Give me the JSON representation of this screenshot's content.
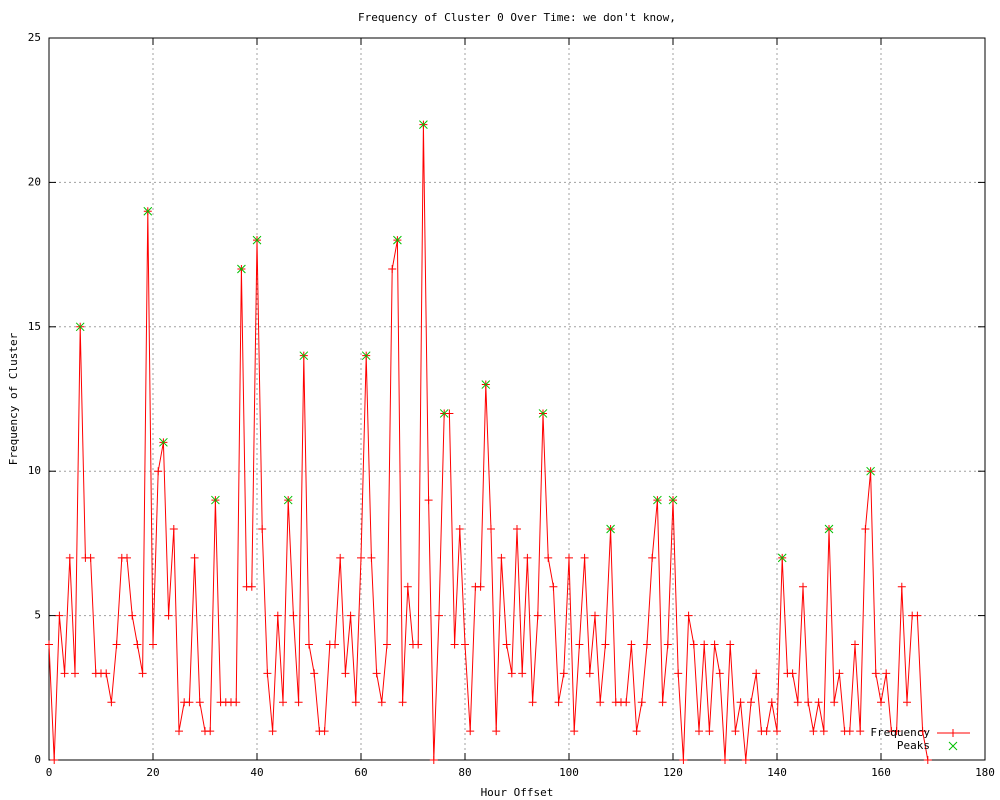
{
  "chart_data": {
    "type": "line",
    "title": "Frequency of Cluster 0 Over Time: we don't know,",
    "xlabel": "Hour Offset",
    "ylabel": "Frequency of Cluster",
    "xlim": [
      0,
      180
    ],
    "xticks": [
      0,
      20,
      40,
      60,
      80,
      100,
      120,
      140,
      160,
      180
    ],
    "ylim": [
      0,
      25
    ],
    "yticks": [
      0,
      5,
      10,
      15,
      20,
      25
    ],
    "grid": true,
    "legend": "bottom-right",
    "series": [
      {
        "name": "Frequency",
        "color": "#ff0000",
        "marker": "plus",
        "x": [
          0,
          1,
          2,
          3,
          4,
          5,
          6,
          7,
          8,
          9,
          10,
          11,
          12,
          13,
          14,
          15,
          16,
          17,
          18,
          19,
          20,
          21,
          22,
          23,
          24,
          25,
          26,
          27,
          28,
          29,
          30,
          31,
          32,
          33,
          34,
          35,
          36,
          37,
          38,
          39,
          40,
          41,
          42,
          43,
          44,
          45,
          46,
          47,
          48,
          49,
          50,
          51,
          52,
          53,
          54,
          55,
          56,
          57,
          58,
          59,
          60,
          61,
          62,
          63,
          64,
          65,
          66,
          67,
          68,
          69,
          70,
          71,
          72,
          73,
          74,
          75,
          76,
          77,
          78,
          79,
          80,
          81,
          82,
          83,
          84,
          85,
          86,
          87,
          88,
          89,
          90,
          91,
          92,
          93,
          94,
          95,
          96,
          97,
          98,
          99,
          100,
          101,
          102,
          103,
          104,
          105,
          106,
          107,
          108,
          109,
          110,
          111,
          112,
          113,
          114,
          115,
          116,
          117,
          118,
          119,
          120,
          121,
          122,
          123,
          124,
          125,
          126,
          127,
          128,
          129,
          130,
          131,
          132,
          133,
          134,
          135,
          136,
          137,
          138,
          139,
          140,
          141,
          142,
          143,
          144,
          145,
          146,
          147,
          148,
          149,
          150,
          151,
          152,
          153,
          154,
          155,
          156,
          157,
          158,
          159,
          160,
          161,
          162,
          163,
          164,
          165,
          166,
          167,
          168,
          169
        ],
        "values": [
          4,
          0,
          5,
          3,
          7,
          3,
          15,
          7,
          7,
          3,
          3,
          3,
          2,
          4,
          7,
          7,
          5,
          4,
          3,
          19,
          4,
          10,
          11,
          5,
          8,
          1,
          2,
          2,
          7,
          2,
          1,
          1,
          9,
          2,
          2,
          2,
          2,
          17,
          6,
          6,
          18,
          8,
          3,
          1,
          5,
          2,
          9,
          5,
          2,
          14,
          4,
          3,
          1,
          1,
          4,
          4,
          7,
          3,
          5,
          2,
          7,
          14,
          7,
          3,
          2,
          4,
          17,
          18,
          2,
          6,
          4,
          4,
          22,
          9,
          0,
          5,
          12,
          12,
          4,
          8,
          4,
          1,
          6,
          6,
          13,
          8,
          1,
          7,
          4,
          3,
          8,
          3,
          7,
          2,
          5,
          12,
          7,
          6,
          2,
          3,
          7,
          1,
          4,
          7,
          3,
          5,
          2,
          4,
          8,
          2,
          2,
          2,
          4,
          1,
          2,
          4,
          7,
          9,
          2,
          4,
          9,
          3,
          0,
          5,
          4,
          1,
          4,
          1,
          4,
          3,
          0,
          4,
          1,
          2,
          0,
          2,
          3,
          1,
          1,
          2,
          1,
          7,
          3,
          3,
          2,
          6,
          2,
          1,
          2,
          1,
          8,
          2,
          3,
          1,
          1,
          4,
          1,
          8,
          10,
          3,
          2,
          3,
          1,
          1,
          6,
          2,
          5,
          5,
          1,
          0
        ]
      },
      {
        "name": "Peaks",
        "color": "#00c000",
        "marker": "cross",
        "x": [
          6,
          19,
          22,
          32,
          37,
          40,
          46,
          49,
          61,
          67,
          72,
          76,
          84,
          95,
          108,
          117,
          120,
          141,
          150,
          158
        ],
        "values": [
          15,
          19,
          11,
          9,
          17,
          18,
          9,
          14,
          14,
          18,
          22,
          12,
          13,
          12,
          8,
          9,
          9,
          7,
          8,
          10
        ]
      }
    ]
  }
}
